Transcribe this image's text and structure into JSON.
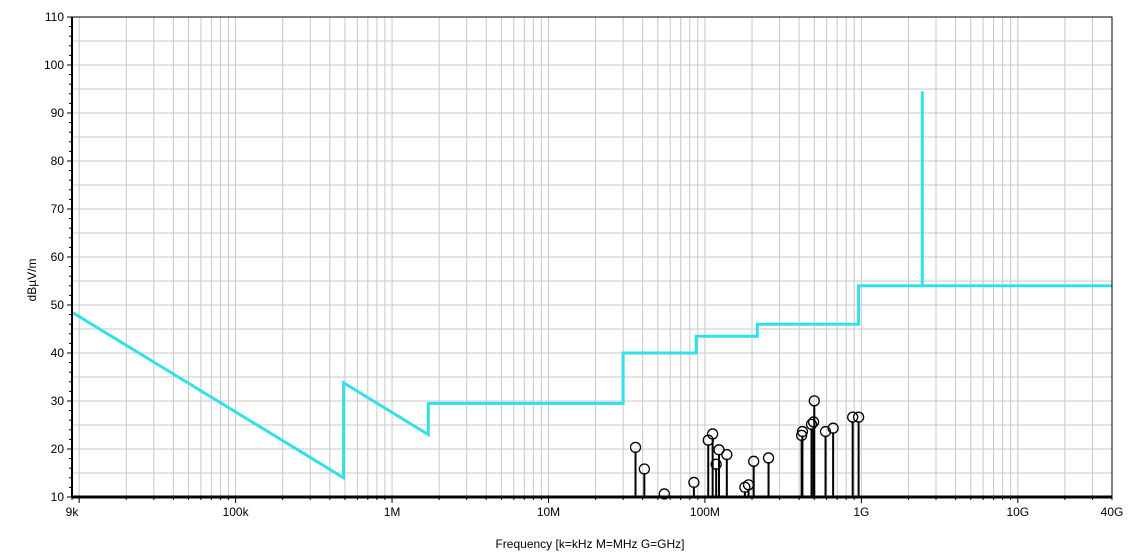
{
  "chart_data": {
    "type": "line",
    "title": "",
    "xlabel": "Frequency [k=kHz M=MHz G=GHz]",
    "ylabel": "dBµV/m",
    "x_scale": "log",
    "xlim": [
      9000,
      40000000000
    ],
    "ylim": [
      10,
      110
    ],
    "grid": true,
    "x_ticks": [
      {
        "value": 9000,
        "label": "9k"
      },
      {
        "value": 100000,
        "label": "100k"
      },
      {
        "value": 1000000,
        "label": "1M"
      },
      {
        "value": 10000000,
        "label": "10M"
      },
      {
        "value": 100000000,
        "label": "100M"
      },
      {
        "value": 1000000000,
        "label": "1G"
      },
      {
        "value": 10000000000,
        "label": "10G"
      },
      {
        "value": 40000000000,
        "label": "40G"
      }
    ],
    "y_ticks": [
      {
        "value": 10,
        "label": "10"
      },
      {
        "value": 20,
        "label": "20"
      },
      {
        "value": 30,
        "label": "30"
      },
      {
        "value": 40,
        "label": "40"
      },
      {
        "value": 50,
        "label": "50"
      },
      {
        "value": 60,
        "label": "60"
      },
      {
        "value": 70,
        "label": "70"
      },
      {
        "value": 80,
        "label": "80"
      },
      {
        "value": 90,
        "label": "90"
      },
      {
        "value": 100,
        "label": "100"
      },
      {
        "value": 110,
        "label": "110"
      }
    ],
    "colors": {
      "limit_line": "#33e0e8",
      "emissions": "#000000",
      "grid": "#c8c8c8"
    },
    "limit_line": {
      "points": [
        [
          9000,
          48.5
        ],
        [
          490000,
          14
        ],
        [
          490000,
          33.8
        ],
        [
          1705000,
          23
        ],
        [
          1705000,
          29.5
        ],
        [
          30000000,
          29.5
        ],
        [
          30000000,
          40
        ],
        [
          88000000,
          40
        ],
        [
          88000000,
          43.5
        ],
        [
          216000000,
          43.5
        ],
        [
          216000000,
          46
        ],
        [
          960000000,
          46
        ],
        [
          960000000,
          54
        ],
        [
          2450000000,
          54
        ],
        [
          2450000000,
          94.5
        ],
        [
          2450000000,
          54
        ],
        [
          40000000000,
          54
        ]
      ]
    },
    "emissions": [
      {
        "freq": 36000000,
        "level": 19.5
      },
      {
        "freq": 41000000,
        "level": 15
      },
      {
        "freq": 55000000,
        "level": 9.8
      },
      {
        "freq": 85000000,
        "level": 12.2
      },
      {
        "freq": 105000000,
        "level": 21
      },
      {
        "freq": 112000000,
        "level": 22.3
      },
      {
        "freq": 118000000,
        "level": 16
      },
      {
        "freq": 123000000,
        "level": 19
      },
      {
        "freq": 138000000,
        "level": 18
      },
      {
        "freq": 180000000,
        "level": 11.2
      },
      {
        "freq": 190000000,
        "level": 11.7
      },
      {
        "freq": 205000000,
        "level": 16.6
      },
      {
        "freq": 255000000,
        "level": 17.3
      },
      {
        "freq": 415000000,
        "level": 22
      },
      {
        "freq": 420000000,
        "level": 22.8
      },
      {
        "freq": 480000000,
        "level": 24.3
      },
      {
        "freq": 495000000,
        "level": 24.8
      },
      {
        "freq": 500000000,
        "level": 29.2
      },
      {
        "freq": 590000000,
        "level": 22.8
      },
      {
        "freq": 660000000,
        "level": 23.5
      },
      {
        "freq": 880000000,
        "level": 25.8
      },
      {
        "freq": 960000000,
        "level": 25.8
      }
    ]
  }
}
